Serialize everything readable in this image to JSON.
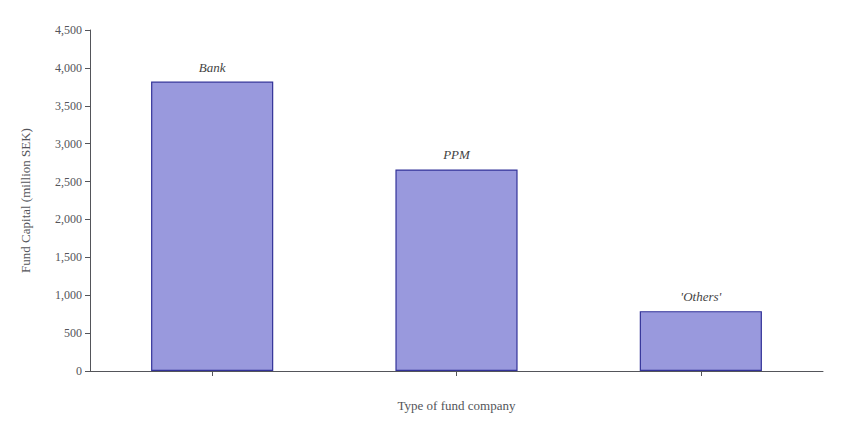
{
  "chart_data": {
    "type": "bar",
    "categories": [
      "Bank",
      "PPM",
      "'Others'"
    ],
    "values": [
      3820,
      2660,
      790
    ],
    "color": "#9999DD",
    "xlabel": "Type of fund company",
    "ylabel": "Fund Capital (million SEK)",
    "ylim": [
      0,
      4500
    ],
    "yticks": [
      0,
      500,
      1000,
      1500,
      2000,
      2500,
      3000,
      3500,
      4000,
      4500
    ],
    "grid": false,
    "tick_labels": "y"
  }
}
